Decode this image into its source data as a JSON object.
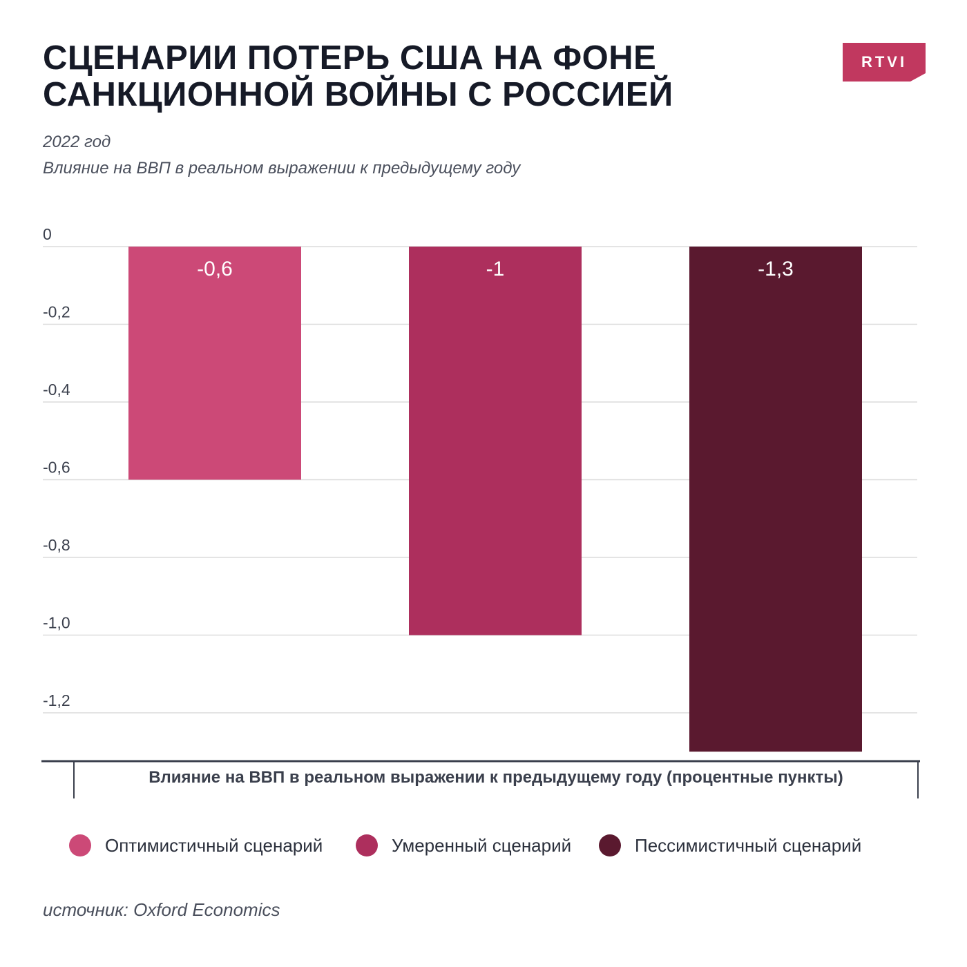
{
  "header": {
    "title_line1": "СЦЕНАРИИ ПОТЕРЬ США НА ФОНЕ",
    "title_line2": "САНКЦИОННОЙ ВОЙНЫ С РОССИЕЙ",
    "subtitle_year": "2022 год",
    "subtitle_desc": "Влияние на ВВП в реальном выражении к предыдущему году",
    "logo_text": "RTVI",
    "logo_color": "#c1385f"
  },
  "chart_data": {
    "type": "bar",
    "categories": [
      "Оптимистичный сценарий",
      "Умеренный сценарий",
      "Пессимистичный сценарий"
    ],
    "values": [
      -0.6,
      -1,
      -1.3
    ],
    "value_labels": [
      "-0,6",
      "-1",
      "-1,3"
    ],
    "colors": [
      "#cc4977",
      "#ad2f5d",
      "#5a192f"
    ],
    "y_ticks": [
      0,
      -0.2,
      -0.4,
      -0.6,
      -0.8,
      -1.0,
      -1.2
    ],
    "y_tick_labels": [
      "0",
      "-0,2",
      "-0,4",
      "-0,6",
      "-0,8",
      "-1,0",
      "-1,2"
    ],
    "ylim": [
      -1.3,
      0
    ],
    "xlabel": "Влияние на ВВП в реальном выражении к предыдущему году (процентные пункты)",
    "grid": true,
    "legend": "bottom"
  },
  "legend": {
    "items": [
      {
        "label": "Оптимистичный сценарий",
        "color": "#cc4977"
      },
      {
        "label": "Умеренный сценарий",
        "color": "#ad2f5d"
      },
      {
        "label": "Пессимистичный сценарий",
        "color": "#5a192f"
      }
    ]
  },
  "footer": {
    "source": "источник: Oxford Economics"
  }
}
